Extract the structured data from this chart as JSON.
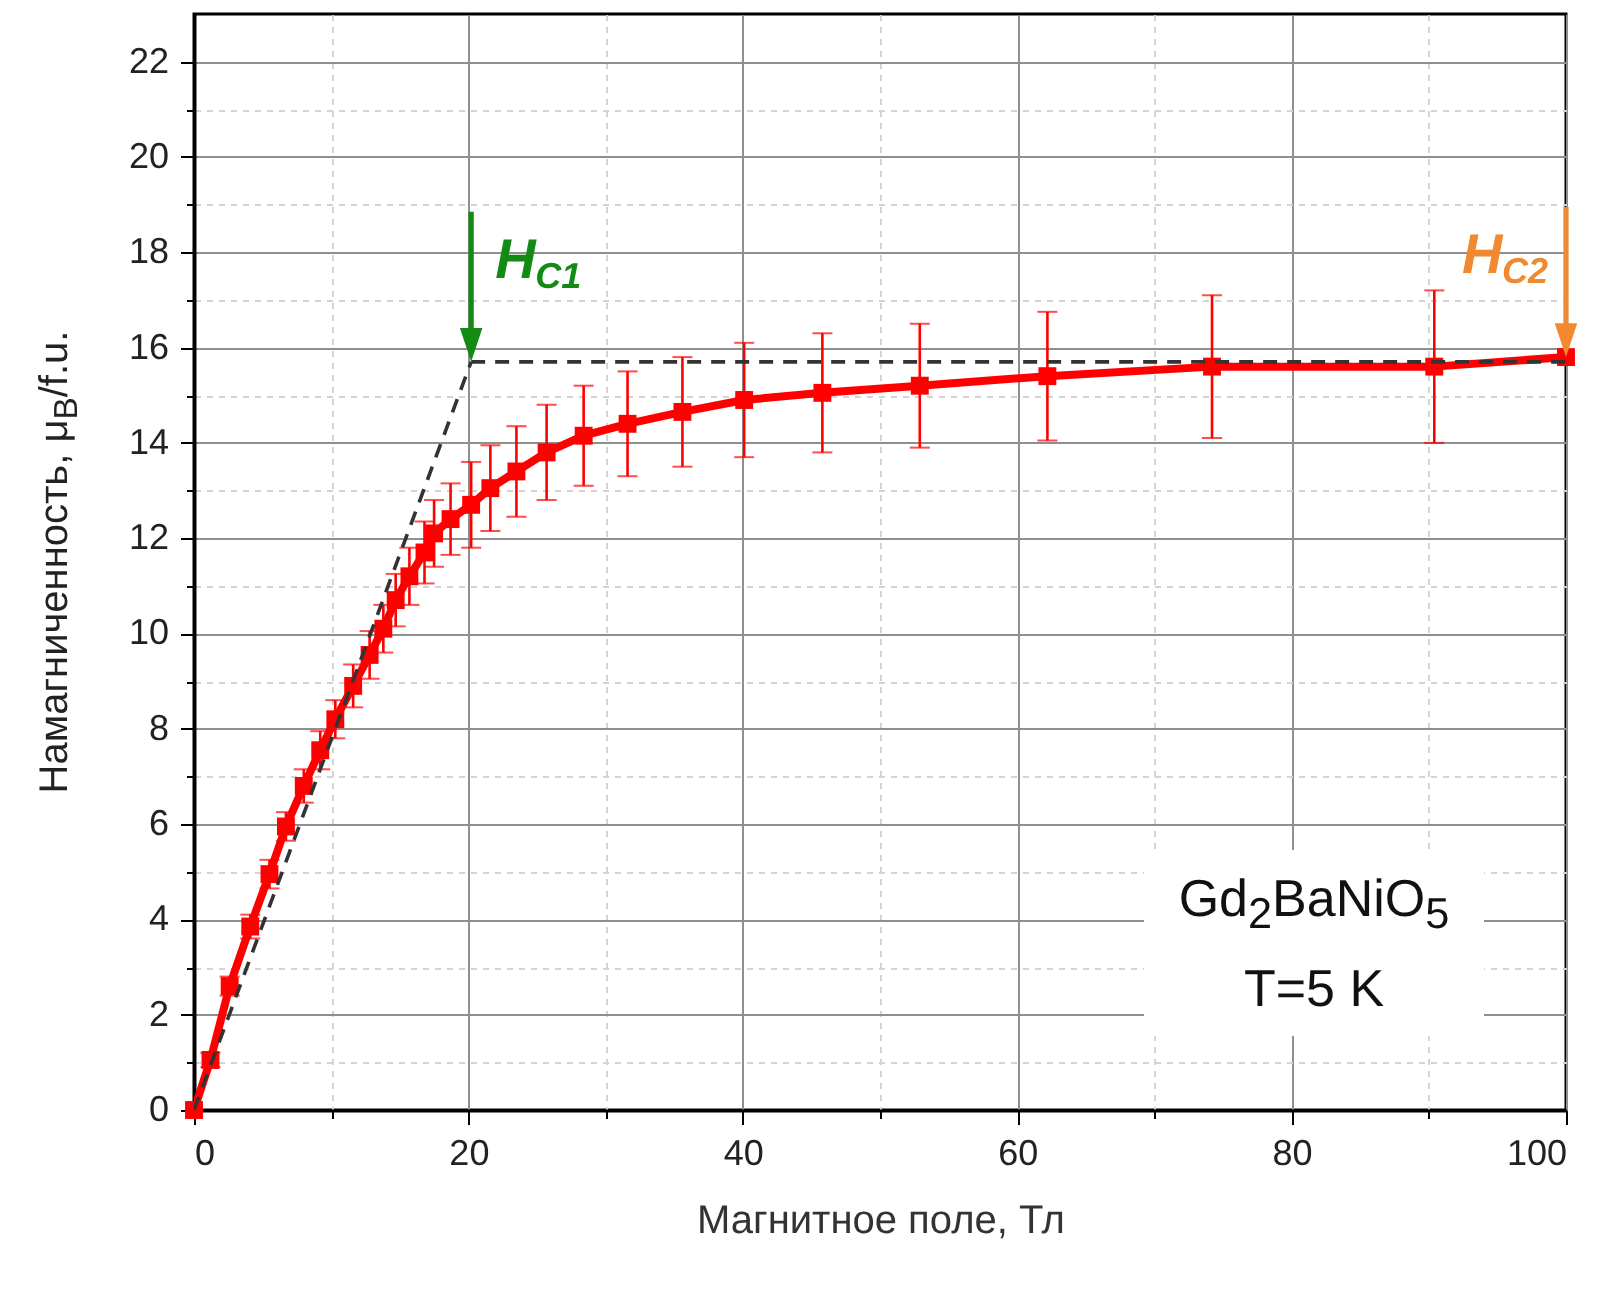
{
  "chart_data": {
    "type": "line",
    "xlabel": "Магнитное поле, Тл",
    "ylabel": "Намагниченность, μ$_{B}$/f.u.",
    "xlim": [
      0,
      100
    ],
    "xticks": [
      0,
      {
        "value": 10,
        "label": null
      },
      20,
      {
        "value": 30,
        "label": null
      },
      40,
      {
        "value": 50,
        "label": null
      },
      60,
      {
        "value": 70,
        "label": null
      },
      80,
      {
        "value": 90,
        "label": null
      },
      100
    ],
    "ylim": [
      0,
      23
    ],
    "yticks": [
      0,
      {
        "value": 1,
        "label": null
      },
      2,
      {
        "value": 3,
        "label": null
      },
      4,
      {
        "value": 5,
        "label": null
      },
      6,
      {
        "value": 7,
        "label": null
      },
      8,
      {
        "value": 9,
        "label": null
      },
      10,
      {
        "value": 11,
        "label": null
      },
      12,
      {
        "value": 13,
        "label": null
      },
      14,
      {
        "value": 15,
        "label": null
      },
      16,
      {
        "value": 17,
        "label": null
      },
      18,
      {
        "value": 19,
        "label": null
      },
      20,
      {
        "value": 21,
        "label": null
      },
      22
    ],
    "grid": true,
    "series": [
      {
        "color": "#ff0000",
        "marker": "square",
        "line_style": "solid",
        "x": [
          0,
          1.2,
          2.6,
          4.1,
          5.5,
          6.7,
          8.0,
          9.2,
          10.3,
          11.6,
          12.8,
          13.8,
          14.7,
          15.7,
          16.8,
          17.5,
          18.7,
          20.2,
          21.6,
          23.5,
          25.7,
          28.4,
          31.6,
          35.6,
          40.1,
          45.8,
          52.9,
          62.2,
          74.2,
          90.4,
          100
        ],
        "values": [
          0,
          1.05,
          2.6,
          3.85,
          4.95,
          5.95,
          6.8,
          7.55,
          8.2,
          8.9,
          9.55,
          10.1,
          10.7,
          11.2,
          11.7,
          12.1,
          12.4,
          12.7,
          13.05,
          13.4,
          13.8,
          14.15,
          14.4,
          14.65,
          14.9,
          15.05,
          15.2,
          15.4,
          15.6,
          15.6,
          15.8
        ],
        "errors": [
          null,
          0.15,
          0.2,
          0.25,
          0.3,
          0.3,
          0.35,
          0.4,
          0.4,
          0.45,
          0.5,
          0.5,
          0.55,
          0.6,
          0.65,
          0.7,
          0.75,
          0.9,
          0.9,
          0.95,
          1.0,
          1.05,
          1.1,
          1.15,
          1.2,
          1.25,
          1.3,
          1.35,
          1.5,
          1.6,
          null
        ]
      },
      {
        "color": "#333333",
        "marker": "none",
        "line_style": "dashed",
        "x": [
          0,
          20.2
        ],
        "values": [
          0,
          15.7
        ]
      },
      {
        "color": "#333333",
        "marker": "none",
        "line_style": "dashed",
        "x": [
          20.2,
          100
        ],
        "values": [
          15.7,
          15.7
        ]
      }
    ],
    "annotations": [
      {
        "text": "H$_{C1}$",
        "x": 20.2,
        "y": 15.7
      },
      {
        "text": "H$_{C2}$",
        "x": 100,
        "y": 15.8
      },
      "Gd$_{2}$BaNiO$_{5}$",
      "T=5 K"
    ]
  }
}
